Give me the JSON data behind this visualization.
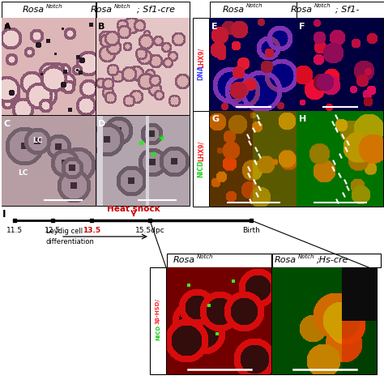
{
  "figure_bg": "#ffffff",
  "timeline": {
    "heat_shock_label": "Heat shock",
    "heat_shock_color": "#cc0000",
    "highlight_color": "#cc0000",
    "leydig_label": "Leydig cell\ndifferentiation"
  },
  "figure_label": "I"
}
